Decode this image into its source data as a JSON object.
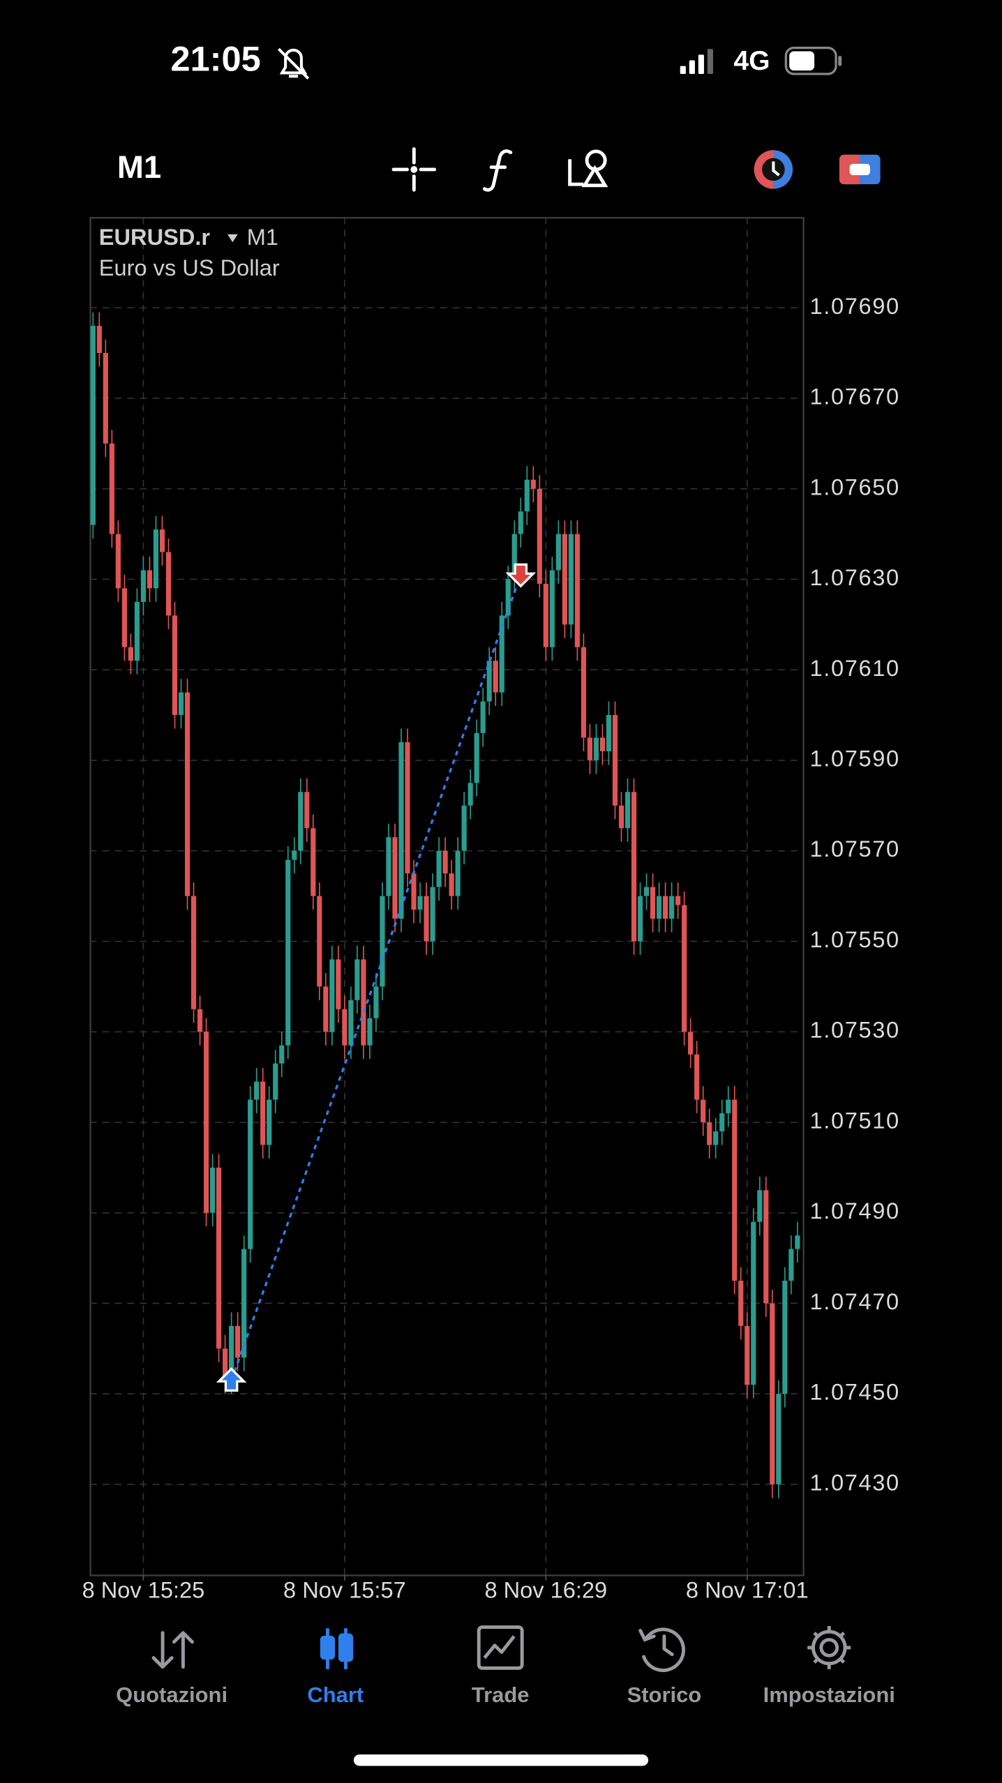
{
  "status_bar": {
    "time": "21:05",
    "network": "4G"
  },
  "toolbar": {
    "timeframe": "M1"
  },
  "chart_data": {
    "type": "candlestick",
    "symbol": "EURUSD.r",
    "timeframe": "M1",
    "description": "Euro vs US Dollar",
    "categories": [
      null,
      null,
      null,
      null,
      null,
      null,
      null,
      null,
      "8 Nov 15:25",
      null,
      null,
      null,
      null,
      null,
      null,
      null,
      null,
      null,
      null,
      null,
      null,
      null,
      null,
      null,
      null,
      null,
      null,
      null,
      null,
      null,
      null,
      null,
      null,
      null,
      null,
      null,
      null,
      null,
      null,
      null,
      "8 Nov 15:57",
      null,
      null,
      null,
      null,
      null,
      null,
      null,
      null,
      null,
      null,
      null,
      null,
      null,
      null,
      null,
      null,
      null,
      null,
      null,
      null,
      null,
      null,
      null,
      null,
      null,
      null,
      null,
      null,
      null,
      null,
      null,
      "8 Nov 16:29",
      null,
      null,
      null,
      null,
      null,
      null,
      null,
      null,
      null,
      null,
      null,
      null,
      null,
      null,
      null,
      null,
      null,
      null,
      null,
      null,
      null,
      null,
      null,
      null,
      null,
      null,
      null,
      null,
      null,
      null,
      null,
      "8 Nov 17:01",
      null,
      null,
      null,
      null,
      null,
      null,
      null,
      null
    ],
    "open": [
      1.07642,
      1.07686,
      1.0768,
      1.0766,
      1.0764,
      1.07628,
      1.07615,
      1.07612,
      1.07625,
      1.07632,
      1.07628,
      1.07641,
      1.07636,
      1.07622,
      1.076,
      1.07605,
      1.0756,
      1.07535,
      1.0753,
      1.0749,
      1.075,
      1.0746,
      1.07453,
      1.07465,
      1.07458,
      1.07482,
      1.07515,
      1.07519,
      1.07505,
      1.07515,
      1.07523,
      1.07527,
      1.07568,
      1.0757,
      1.07583,
      1.07575,
      1.0756,
      1.0754,
      1.0753,
      1.07546,
      1.07535,
      1.07527,
      1.07537,
      1.07546,
      1.07527,
      1.07533,
      1.0754,
      1.0756,
      1.07573,
      1.07555,
      1.07594,
      1.07565,
      1.07557,
      1.0756,
      1.0755,
      1.07562,
      1.0757,
      1.07565,
      1.0756,
      1.0757,
      1.0758,
      1.07585,
      1.07596,
      1.07603,
      1.07612,
      1.07605,
      1.07622,
      1.0763,
      1.0764,
      1.07645,
      1.07652,
      1.0765,
      1.07629,
      1.07615,
      1.07632,
      1.0764,
      1.0762,
      1.0764,
      1.07615,
      1.07595,
      1.0759,
      1.07595,
      1.07592,
      1.076,
      1.0758,
      1.07575,
      1.07583,
      1.0755,
      1.0756,
      1.07562,
      1.07555,
      1.0756,
      1.07555,
      1.0756,
      1.07558,
      1.0753,
      1.07525,
      1.07515,
      1.0751,
      1.07505,
      1.07508,
      1.07512,
      1.07515,
      1.07475,
      1.07465,
      1.07452,
      1.07488,
      1.07495,
      1.0747,
      1.0743,
      1.0745,
      1.07475,
      1.07482
    ],
    "high": [
      1.07689,
      1.07689,
      1.07683,
      1.07663,
      1.07643,
      1.07631,
      1.07618,
      1.07628,
      1.07635,
      1.07635,
      1.07644,
      1.07644,
      1.07639,
      1.07625,
      1.07608,
      1.07608,
      1.07563,
      1.07538,
      1.07533,
      1.07503,
      1.07503,
      1.07463,
      1.07468,
      1.07468,
      1.07485,
      1.07518,
      1.07522,
      1.07522,
      1.07518,
      1.07526,
      1.0753,
      1.07571,
      1.07573,
      1.07586,
      1.07586,
      1.07578,
      1.07563,
      1.07543,
      1.07549,
      1.07549,
      1.07538,
      1.0754,
      1.07549,
      1.07549,
      1.07536,
      1.07543,
      1.07563,
      1.07576,
      1.07576,
      1.07597,
      1.07597,
      1.07568,
      1.07563,
      1.07563,
      1.07565,
      1.07573,
      1.07573,
      1.07568,
      1.07573,
      1.07583,
      1.07588,
      1.07599,
      1.07606,
      1.07615,
      1.07615,
      1.07625,
      1.07633,
      1.07643,
      1.07648,
      1.07655,
      1.07655,
      1.07653,
      1.07632,
      1.07635,
      1.07643,
      1.07643,
      1.07643,
      1.07643,
      1.07618,
      1.07598,
      1.07598,
      1.07598,
      1.07603,
      1.07603,
      1.07583,
      1.07586,
      1.07586,
      1.07563,
      1.07565,
      1.07565,
      1.07563,
      1.07563,
      1.07563,
      1.07563,
      1.07561,
      1.07533,
      1.07528,
      1.07518,
      1.07513,
      1.07511,
      1.07515,
      1.07518,
      1.07518,
      1.07478,
      1.07468,
      1.07491,
      1.07498,
      1.07498,
      1.07473,
      1.07453,
      1.07478,
      1.07485,
      1.07488
    ],
    "low": [
      1.07639,
      1.07677,
      1.07657,
      1.07637,
      1.07625,
      1.07612,
      1.07609,
      1.07609,
      1.07622,
      1.07625,
      1.07625,
      1.07633,
      1.07619,
      1.07597,
      1.07597,
      1.07557,
      1.07532,
      1.07527,
      1.07487,
      1.07487,
      1.07457,
      1.0745,
      1.0745,
      1.07455,
      1.07455,
      1.07479,
      1.07512,
      1.07502,
      1.07502,
      1.07512,
      1.0752,
      1.07524,
      1.07565,
      1.07567,
      1.07572,
      1.07557,
      1.07537,
      1.07527,
      1.07527,
      1.07532,
      1.07524,
      1.07524,
      1.07534,
      1.07524,
      1.07524,
      1.0753,
      1.07537,
      1.07557,
      1.07552,
      1.07552,
      1.07562,
      1.07554,
      1.07554,
      1.07547,
      1.07547,
      1.07559,
      1.07562,
      1.07557,
      1.07557,
      1.07567,
      1.07577,
      1.07582,
      1.07593,
      1.076,
      1.07602,
      1.07602,
      1.07619,
      1.07627,
      1.07637,
      1.07642,
      1.07647,
      1.07626,
      1.07612,
      1.07612,
      1.07629,
      1.07617,
      1.07617,
      1.07612,
      1.07592,
      1.07587,
      1.07587,
      1.07589,
      1.07589,
      1.07577,
      1.07572,
      1.07572,
      1.07547,
      1.07547,
      1.07557,
      1.07552,
      1.07552,
      1.07552,
      1.07552,
      1.07555,
      1.07527,
      1.07522,
      1.07512,
      1.07507,
      1.07502,
      1.07502,
      1.07505,
      1.07509,
      1.07472,
      1.07462,
      1.07449,
      1.07449,
      1.07485,
      1.07467,
      1.07427,
      1.07427,
      1.07447,
      1.07472,
      1.07479
    ],
    "close": [
      1.07686,
      1.0768,
      1.0766,
      1.0764,
      1.07628,
      1.07615,
      1.07612,
      1.07625,
      1.07632,
      1.07628,
      1.07641,
      1.07636,
      1.07622,
      1.076,
      1.07605,
      1.0756,
      1.07535,
      1.0753,
      1.0749,
      1.075,
      1.0746,
      1.07453,
      1.07465,
      1.07458,
      1.07482,
      1.07515,
      1.07519,
      1.07505,
      1.07515,
      1.07523,
      1.07527,
      1.07568,
      1.0757,
      1.07583,
      1.07575,
      1.0756,
      1.0754,
      1.0753,
      1.07546,
      1.07535,
      1.07527,
      1.07537,
      1.07546,
      1.07527,
      1.07533,
      1.0754,
      1.0756,
      1.07573,
      1.07555,
      1.07594,
      1.07565,
      1.07557,
      1.0756,
      1.0755,
      1.07562,
      1.0757,
      1.07565,
      1.0756,
      1.0757,
      1.0758,
      1.07585,
      1.07596,
      1.07603,
      1.07612,
      1.07605,
      1.07622,
      1.0763,
      1.0764,
      1.07645,
      1.07652,
      1.0765,
      1.07629,
      1.07615,
      1.07632,
      1.0764,
      1.0762,
      1.0764,
      1.07615,
      1.07595,
      1.0759,
      1.07595,
      1.07592,
      1.076,
      1.0758,
      1.07575,
      1.07583,
      1.0755,
      1.0756,
      1.07562,
      1.07555,
      1.0756,
      1.07555,
      1.0756,
      1.07558,
      1.0753,
      1.07525,
      1.07515,
      1.0751,
      1.07505,
      1.07508,
      1.07512,
      1.07515,
      1.07475,
      1.07465,
      1.07452,
      1.07488,
      1.07495,
      1.0747,
      1.0743,
      1.0745,
      1.07475,
      1.07482,
      1.07485
    ],
    "up_color": "#2a9d8f",
    "down_color": "#e05555",
    "ylim": [
      1.0741,
      1.0771
    ],
    "yticks": [
      {
        "value": 1.0743,
        "label": "1.07430"
      },
      {
        "value": 1.0745,
        "label": "1.07450"
      },
      {
        "value": 1.0747,
        "label": "1.07470"
      },
      {
        "value": 1.0749,
        "label": "1.07490"
      },
      {
        "value": 1.0751,
        "label": "1.07510"
      },
      {
        "value": 1.0753,
        "label": "1.07530"
      },
      {
        "value": 1.0755,
        "label": "1.07550"
      },
      {
        "value": 1.0757,
        "label": "1.07570"
      },
      {
        "value": 1.0759,
        "label": "1.07590"
      },
      {
        "value": 1.0761,
        "label": "1.07610"
      },
      {
        "value": 1.0763,
        "label": "1.07630"
      },
      {
        "value": 1.0765,
        "label": "1.07650"
      },
      {
        "value": 1.0767,
        "label": "1.07670"
      },
      {
        "value": 1.0769,
        "label": "1.07690"
      }
    ],
    "grid": true,
    "trade": {
      "open_index": 22,
      "open_price": 1.07453,
      "close_index": 68,
      "close_price": 1.07631
    }
  },
  "tab_bar": {
    "tabs": [
      {
        "label": "Quotazioni",
        "active": false
      },
      {
        "label": "Chart",
        "active": true
      },
      {
        "label": "Trade",
        "active": false
      },
      {
        "label": "Storico",
        "active": false
      },
      {
        "label": "Impostazioni",
        "active": false
      }
    ]
  }
}
